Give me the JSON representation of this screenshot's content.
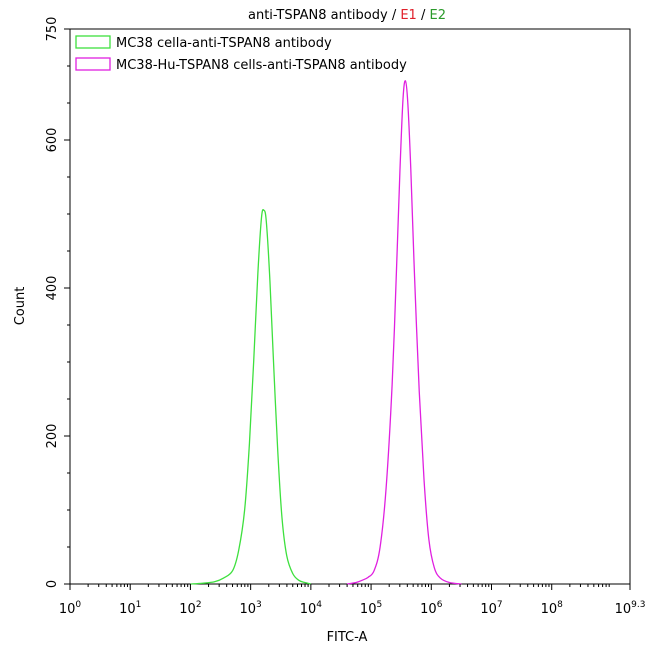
{
  "chart_data": {
    "type": "line",
    "title_parts": [
      {
        "text": "anti-TSPAN8 antibody",
        "color": "#000000"
      },
      {
        "text": " / ",
        "color": "#000000"
      },
      {
        "text": "E1",
        "color": "#e0202a"
      },
      {
        "text": " / ",
        "color": "#000000"
      },
      {
        "text": "E2",
        "color": "#2a9a2a"
      }
    ],
    "xlabel": "FITC-A",
    "ylabel": "Count",
    "x_scale": "log10",
    "xlim": [
      0,
      9.3
    ],
    "ylim": [
      0,
      750
    ],
    "x_ticks": [
      {
        "base": "10",
        "exp": "0",
        "value": 0
      },
      {
        "base": "10",
        "exp": "1",
        "value": 1
      },
      {
        "base": "10",
        "exp": "2",
        "value": 2
      },
      {
        "base": "10",
        "exp": "3",
        "value": 3
      },
      {
        "base": "10",
        "exp": "4",
        "value": 4
      },
      {
        "base": "10",
        "exp": "5",
        "value": 5
      },
      {
        "base": "10",
        "exp": "6",
        "value": 6
      },
      {
        "base": "10",
        "exp": "7",
        "value": 7
      },
      {
        "base": "10",
        "exp": "8",
        "value": 8
      },
      {
        "base": "10",
        "exp": "9.3",
        "value": 9.3
      }
    ],
    "y_ticks": [
      {
        "label": "0",
        "value": 0
      },
      {
        "label": "200",
        "value": 200
      },
      {
        "label": "400",
        "value": 400
      },
      {
        "label": "600",
        "value": 600
      },
      {
        "label": "750",
        "value": 750
      }
    ],
    "legend_position": "top-left",
    "grid": false,
    "series": [
      {
        "name": "MC38 cella-anti-TSPAN8 antibody",
        "color": "#3ee03e",
        "points": [
          [
            2.0,
            0
          ],
          [
            2.2,
            1
          ],
          [
            2.4,
            3
          ],
          [
            2.55,
            8
          ],
          [
            2.7,
            18
          ],
          [
            2.8,
            45
          ],
          [
            2.9,
            100
          ],
          [
            2.98,
            190
          ],
          [
            3.05,
            300
          ],
          [
            3.12,
            420
          ],
          [
            3.18,
            495
          ],
          [
            3.22,
            505
          ],
          [
            3.26,
            490
          ],
          [
            3.32,
            410
          ],
          [
            3.38,
            300
          ],
          [
            3.45,
            180
          ],
          [
            3.52,
            90
          ],
          [
            3.6,
            38
          ],
          [
            3.7,
            14
          ],
          [
            3.8,
            5
          ],
          [
            3.9,
            2
          ],
          [
            4.0,
            0
          ]
        ]
      },
      {
        "name": "MC38-Hu-TSPAN8 cells-anti-TSPAN8 antibody",
        "color": "#e020e0",
        "points": [
          [
            4.6,
            0
          ],
          [
            4.75,
            2
          ],
          [
            4.85,
            5
          ],
          [
            4.95,
            9
          ],
          [
            5.05,
            18
          ],
          [
            5.15,
            50
          ],
          [
            5.25,
            130
          ],
          [
            5.35,
            270
          ],
          [
            5.42,
            420
          ],
          [
            5.48,
            560
          ],
          [
            5.53,
            655
          ],
          [
            5.57,
            680
          ],
          [
            5.61,
            650
          ],
          [
            5.66,
            560
          ],
          [
            5.72,
            420
          ],
          [
            5.8,
            260
          ],
          [
            5.88,
            140
          ],
          [
            5.96,
            60
          ],
          [
            6.05,
            22
          ],
          [
            6.15,
            8
          ],
          [
            6.3,
            2
          ],
          [
            6.5,
            0
          ]
        ]
      }
    ]
  }
}
